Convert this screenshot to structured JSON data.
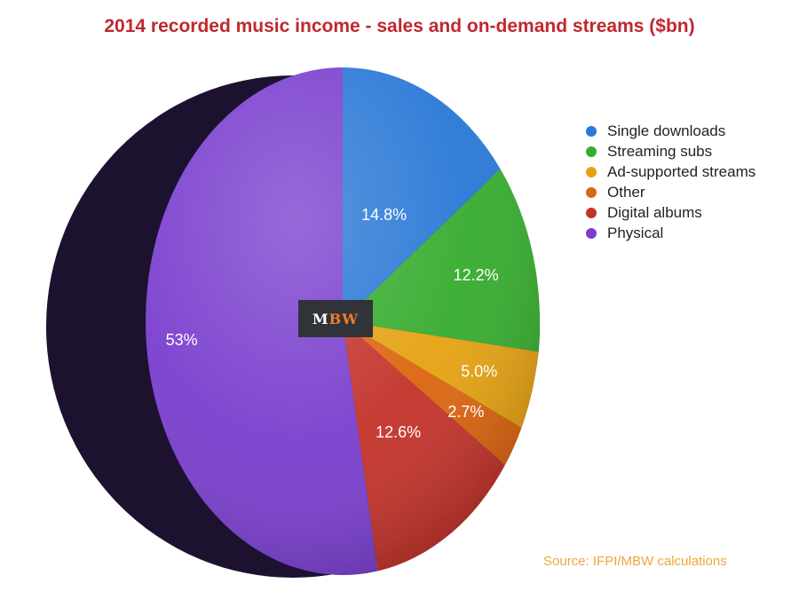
{
  "chart_data": {
    "type": "pie",
    "title": "2014 recorded music income - sales and on-demand streams ($bn)",
    "slices": [
      {
        "name": "Single downloads",
        "value": 14.8,
        "label": "14.8%",
        "color": "#2a78d6"
      },
      {
        "name": "Streaming subs",
        "value": 12.2,
        "label": "12.2%",
        "color": "#36ac2e"
      },
      {
        "name": "Ad-supported streams",
        "value": 5.0,
        "label": "5.0%",
        "color": "#e5a213"
      },
      {
        "name": "Other",
        "value": 2.7,
        "label": "2.7%",
        "color": "#dc6510"
      },
      {
        "name": "Digital albums",
        "value": 12.6,
        "label": "12.6%",
        "color": "#c3342c"
      },
      {
        "name": "Physical",
        "value": 53,
        "label": "53%",
        "color": "#7a3fce"
      }
    ],
    "legend_position": "top-right",
    "start_angle": "12 o'clock",
    "direction": "clockwise"
  },
  "logo": {
    "first": "M",
    "rest": "BW"
  },
  "source": "Source: IFPI/MBW calculations"
}
